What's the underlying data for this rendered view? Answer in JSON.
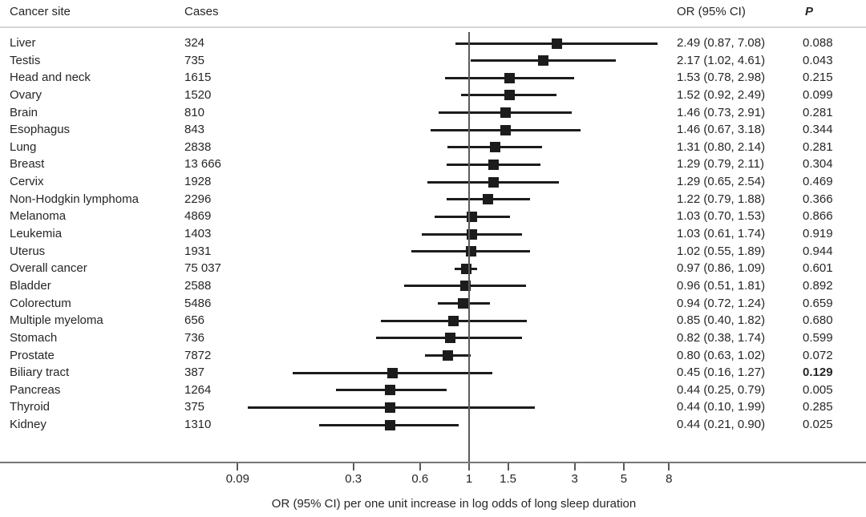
{
  "header": {
    "site": "Cancer site",
    "cases": "Cases",
    "or_ci": "OR (95% CI)",
    "p": "P"
  },
  "colors": {
    "marker": "#1c1c1c",
    "ci_line": "#1c1c1c",
    "axis": "#767676",
    "reference_line": "#5a5a5a",
    "text": "#262626",
    "header_separator": "#d6d6d6"
  },
  "chart_data": {
    "type": "forest",
    "x_scale": "log",
    "x_ticks": [
      "0.09",
      "0.3",
      "0.6",
      "1",
      "1.5",
      "3",
      "5",
      "8"
    ],
    "x_tick_values": [
      0.09,
      0.3,
      0.6,
      1,
      1.5,
      3,
      5,
      8
    ],
    "x_range": [
      0.09,
      8
    ],
    "reference_line": 1,
    "grid": false,
    "xlabel": "OR (95% CI) per one unit increase in log odds of long sleep duration",
    "rows": [
      {
        "site": "Liver",
        "cases": "324",
        "or": 2.49,
        "lo": 0.87,
        "hi": 7.08,
        "or_ci": "2.49 (0.87, 7.08)",
        "p": "0.088",
        "p_bold": false
      },
      {
        "site": "Testis",
        "cases": "735",
        "or": 2.17,
        "lo": 1.02,
        "hi": 4.61,
        "or_ci": "2.17 (1.02, 4.61)",
        "p": "0.043",
        "p_bold": false
      },
      {
        "site": "Head and neck",
        "cases": "1615",
        "or": 1.53,
        "lo": 0.78,
        "hi": 2.98,
        "or_ci": "1.53 (0.78, 2.98)",
        "p": "0.215",
        "p_bold": false
      },
      {
        "site": "Ovary",
        "cases": "1520",
        "or": 1.52,
        "lo": 0.92,
        "hi": 2.49,
        "or_ci": "1.52 (0.92, 2.49)",
        "p": "0.099",
        "p_bold": false
      },
      {
        "site": "Brain",
        "cases": "810",
        "or": 1.46,
        "lo": 0.73,
        "hi": 2.91,
        "or_ci": "1.46 (0.73, 2.91)",
        "p": "0.281",
        "p_bold": false
      },
      {
        "site": "Esophagus",
        "cases": "843",
        "or": 1.46,
        "lo": 0.67,
        "hi": 3.18,
        "or_ci": "1.46 (0.67, 3.18)",
        "p": "0.344",
        "p_bold": false
      },
      {
        "site": "Lung",
        "cases": "2838",
        "or": 1.31,
        "lo": 0.8,
        "hi": 2.14,
        "or_ci": "1.31 (0.80, 2.14)",
        "p": "0.281",
        "p_bold": false
      },
      {
        "site": "Breast",
        "cases": "13 666",
        "or": 1.29,
        "lo": 0.79,
        "hi": 2.11,
        "or_ci": "1.29 (0.79, 2.11)",
        "p": "0.304",
        "p_bold": false
      },
      {
        "site": "Cervix",
        "cases": "1928",
        "or": 1.29,
        "lo": 0.65,
        "hi": 2.54,
        "or_ci": "1.29 (0.65, 2.54)",
        "p": "0.469",
        "p_bold": false
      },
      {
        "site": "Non-Hodgkin lymphoma",
        "cases": "2296",
        "or": 1.22,
        "lo": 0.79,
        "hi": 1.88,
        "or_ci": "1.22 (0.79, 1.88)",
        "p": "0.366",
        "p_bold": false
      },
      {
        "site": "Melanoma",
        "cases": "4869",
        "or": 1.03,
        "lo": 0.7,
        "hi": 1.53,
        "or_ci": "1.03 (0.70, 1.53)",
        "p": "0.866",
        "p_bold": false
      },
      {
        "site": "Leukemia",
        "cases": "1403",
        "or": 1.03,
        "lo": 0.61,
        "hi": 1.74,
        "or_ci": "1.03 (0.61, 1.74)",
        "p": "0.919",
        "p_bold": false
      },
      {
        "site": "Uterus",
        "cases": "1931",
        "or": 1.02,
        "lo": 0.55,
        "hi": 1.89,
        "or_ci": "1.02 (0.55, 1.89)",
        "p": "0.944",
        "p_bold": false
      },
      {
        "site": "Overall cancer",
        "cases": "75 037",
        "or": 0.97,
        "lo": 0.86,
        "hi": 1.09,
        "or_ci": "0.97 (0.86, 1.09)",
        "p": "0.601",
        "p_bold": false
      },
      {
        "site": "Bladder",
        "cases": "2588",
        "or": 0.96,
        "lo": 0.51,
        "hi": 1.81,
        "or_ci": "0.96 (0.51, 1.81)",
        "p": "0.892",
        "p_bold": false
      },
      {
        "site": "Colorectum",
        "cases": "5486",
        "or": 0.94,
        "lo": 0.72,
        "hi": 1.24,
        "or_ci": "0.94 (0.72, 1.24)",
        "p": "0.659",
        "p_bold": false
      },
      {
        "site": "Multiple myeloma",
        "cases": "656",
        "or": 0.85,
        "lo": 0.4,
        "hi": 1.82,
        "or_ci": "0.85 (0.40, 1.82)",
        "p": "0.680",
        "p_bold": false
      },
      {
        "site": "Stomach",
        "cases": "736",
        "or": 0.82,
        "lo": 0.38,
        "hi": 1.74,
        "or_ci": "0.82 (0.38, 1.74)",
        "p": "0.599",
        "p_bold": false
      },
      {
        "site": "Prostate",
        "cases": "7872",
        "or": 0.8,
        "lo": 0.63,
        "hi": 1.02,
        "or_ci": "0.80 (0.63, 1.02)",
        "p": "0.072",
        "p_bold": false
      },
      {
        "site": "Biliary tract",
        "cases": "387",
        "or": 0.45,
        "lo": 0.16,
        "hi": 1.27,
        "or_ci": "0.45 (0.16, 1.27)",
        "p": "0.129",
        "p_bold": true
      },
      {
        "site": "Pancreas",
        "cases": "1264",
        "or": 0.44,
        "lo": 0.25,
        "hi": 0.79,
        "or_ci": "0.44 (0.25, 0.79)",
        "p": "0.005",
        "p_bold": false
      },
      {
        "site": "Thyroid",
        "cases": "375",
        "or": 0.44,
        "lo": 0.1,
        "hi": 1.99,
        "or_ci": "0.44 (0.10, 1.99)",
        "p": "0.285",
        "p_bold": false
      },
      {
        "site": "Kidney",
        "cases": "1310",
        "or": 0.44,
        "lo": 0.21,
        "hi": 0.9,
        "or_ci": "0.44 (0.21, 0.90)",
        "p": "0.025",
        "p_bold": false
      }
    ]
  }
}
